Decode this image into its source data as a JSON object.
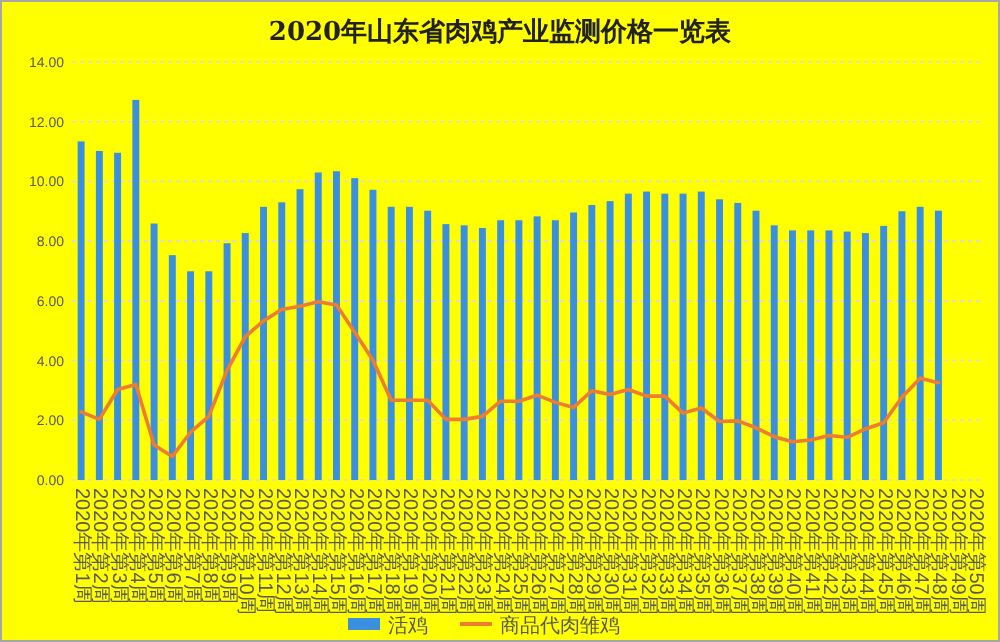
{
  "chart_data": {
    "type": "bar",
    "title": "2020年山东省肉鸡产业监测价格一览表",
    "categories": [
      "2020年第1周",
      "2020年第2周",
      "2020年第3周",
      "2020年第4周",
      "2020年第5周",
      "2020年第6周",
      "2020年第7周",
      "2020年第8周",
      "2020年第9周",
      "2020年第10周",
      "2020年第11周",
      "2020年第12周",
      "2020年第13周",
      "2020年第14周",
      "2020年第15周",
      "2020年第16周",
      "2020年第17周",
      "2020年第18周",
      "2020年第19周",
      "2020年第20周",
      "2020年第21周",
      "2020年第22周",
      "2020年第23周",
      "2020年第24周",
      "2020年第25周",
      "2020年第26周",
      "2020年第27周",
      "2020年第28周",
      "2020年第29周",
      "2020年第30周",
      "2020年第31周",
      "2020年第32周",
      "2020年第33周",
      "2020年第34周",
      "2020年第35周",
      "2020年第36周",
      "2020年第37周",
      "2020年第38周",
      "2020年第39周",
      "2020年第40周",
      "2020年第41周",
      "2020年第42周",
      "2020年第43周",
      "2020年第44周",
      "2020年第45周",
      "2020年第46周",
      "2020年第47周",
      "2020年第48周",
      "2020年第49周",
      "2020年第50周"
    ],
    "series": [
      {
        "name": "活鸡",
        "color": "#3b8fdf",
        "values": [
          11.34,
          11.02,
          10.96,
          12.73,
          8.59,
          7.53,
          6.99,
          6.99,
          7.93,
          8.27,
          9.15,
          9.3,
          9.74,
          10.3,
          10.34,
          10.11,
          9.72,
          9.15,
          9.15,
          9.02,
          8.57,
          8.53,
          8.44,
          8.7,
          8.7,
          8.83,
          8.7,
          8.96,
          9.21,
          9.34,
          9.59,
          9.66,
          9.59,
          9.59,
          9.66,
          9.4,
          9.28,
          9.02,
          8.53,
          8.36,
          8.36,
          8.36,
          8.32,
          8.27,
          8.51,
          9.0,
          9.15,
          9.02,
          null,
          null
        ]
      },
      {
        "name": "商品代肉雏鸡",
        "type": "line",
        "color": "#ed7d31",
        "values": [
          2.28,
          2.03,
          3.03,
          3.2,
          1.17,
          0.79,
          1.6,
          2.13,
          3.67,
          4.8,
          5.33,
          5.71,
          5.82,
          5.97,
          5.86,
          4.95,
          4.01,
          2.67,
          2.67,
          2.67,
          2.03,
          2.03,
          2.13,
          2.64,
          2.64,
          2.84,
          2.6,
          2.43,
          2.99,
          2.86,
          3.03,
          2.81,
          2.81,
          2.24,
          2.41,
          1.96,
          1.98,
          1.75,
          1.45,
          1.28,
          1.34,
          1.49,
          1.43,
          1.71,
          1.92,
          2.77,
          3.41,
          3.26,
          null,
          null
        ]
      }
    ],
    "ylim": [
      0,
      14
    ],
    "yticks": [
      {
        "value": 0,
        "label": "0.00"
      },
      {
        "value": 2,
        "label": "2.00"
      },
      {
        "value": 4,
        "label": "4.00"
      },
      {
        "value": 6,
        "label": "6.00"
      },
      {
        "value": 8,
        "label": "8.00"
      },
      {
        "value": 10,
        "label": "10.00"
      },
      {
        "value": 12,
        "label": "12.00"
      },
      {
        "value": 14,
        "label": "14.00"
      }
    ],
    "grid": "y",
    "legend": "bottom"
  }
}
